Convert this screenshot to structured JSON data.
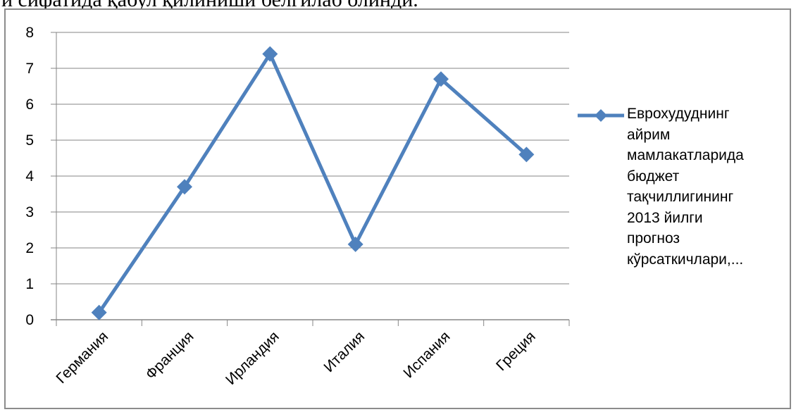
{
  "page": {
    "top_text": "и сифатида қабул қилиниши белгилаб олинди."
  },
  "chart_data": {
    "type": "line",
    "title": "",
    "xlabel": "",
    "ylabel": "",
    "categories": [
      "Германия",
      "Франция",
      "Ирландия",
      "Италия",
      "Испания",
      "Греция"
    ],
    "series": [
      {
        "name": "Еврохудуднинг айрим мамлакатларида бюджет тақчиллигининг 2013 йилги прогноз кўрсаткичлари,...",
        "values": [
          0.2,
          3.7,
          7.4,
          2.1,
          6.7,
          4.6
        ]
      }
    ],
    "yticks": [
      0,
      1,
      2,
      3,
      4,
      5,
      6,
      7,
      8
    ],
    "ylim": [
      0,
      8
    ],
    "grid": true,
    "legend": "right",
    "colors": {
      "series": "#4f81bd",
      "grid": "#868686",
      "axis": "#868686"
    }
  },
  "legend": {
    "text": "Еврохудуднинг\nайрим\nмамлакатларида\nбюджет\nтақчиллигининг\n2013 йилги\nпрогноз\nкўрсаткичлари,..."
  }
}
